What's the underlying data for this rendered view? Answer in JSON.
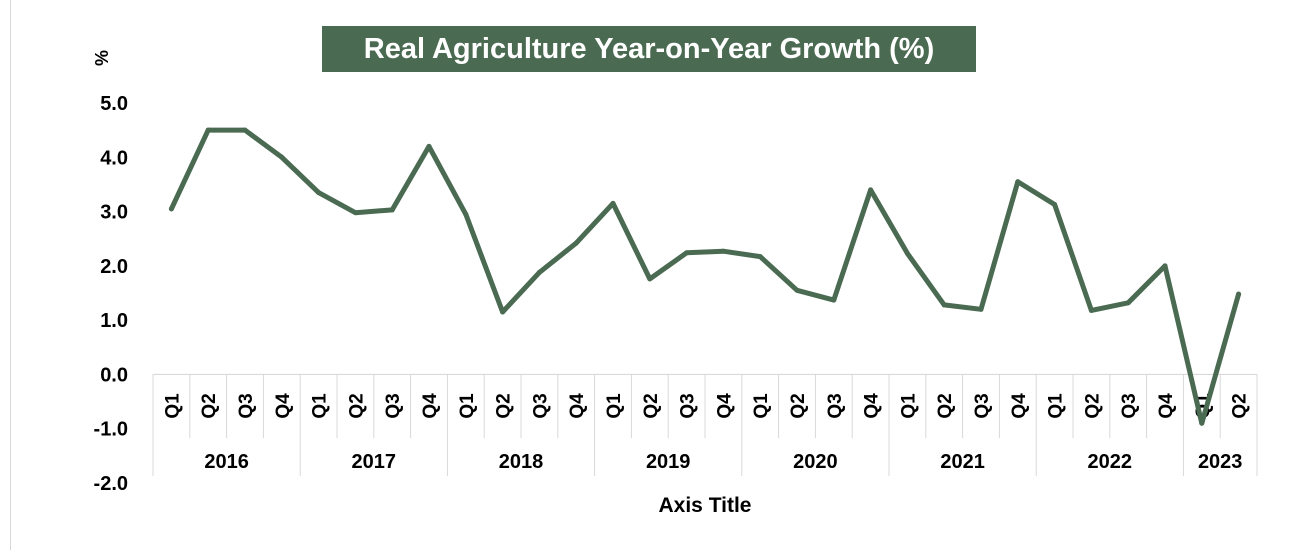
{
  "chart_data": {
    "type": "line",
    "title": "Real Agriculture Year-on-Year Growth (%)",
    "ylabel": "%",
    "xlabel": "Axis Title",
    "ylim": [
      -2.0,
      5.0
    ],
    "y_ticks": [
      "5.0",
      "4.0",
      "3.0",
      "2.0",
      "1.0",
      "0.0",
      "-1.0",
      "-2.0"
    ],
    "x_quarters": [
      "Q1",
      "Q2",
      "Q3",
      "Q4",
      "Q1",
      "Q2",
      "Q3",
      "Q4",
      "Q1",
      "Q2",
      "Q3",
      "Q4",
      "Q1",
      "Q2",
      "Q3",
      "Q4",
      "Q1",
      "Q2",
      "Q3",
      "Q4",
      "Q1",
      "Q2",
      "Q3",
      "Q4",
      "Q1",
      "Q2",
      "Q3",
      "Q4",
      "Q1",
      "Q2"
    ],
    "x_years": [
      {
        "label": "2016",
        "quarters": 4
      },
      {
        "label": "2017",
        "quarters": 4
      },
      {
        "label": "2018",
        "quarters": 4
      },
      {
        "label": "2019",
        "quarters": 4
      },
      {
        "label": "2020",
        "quarters": 4
      },
      {
        "label": "2021",
        "quarters": 4
      },
      {
        "label": "2022",
        "quarters": 4
      },
      {
        "label": "2023",
        "quarters": 2
      }
    ],
    "series": [
      {
        "values": [
          3.05,
          4.5,
          4.5,
          4.0,
          3.35,
          2.98,
          3.03,
          4.2,
          2.95,
          1.15,
          1.88,
          2.42,
          3.15,
          1.76,
          2.24,
          2.27,
          2.17,
          1.55,
          1.37,
          3.4,
          2.23,
          1.28,
          1.2,
          3.55,
          3.13,
          1.18,
          1.32,
          2.0,
          -0.9,
          1.48
        ],
        "color": "#4a6b52"
      }
    ],
    "grid": false,
    "legend": "none"
  }
}
